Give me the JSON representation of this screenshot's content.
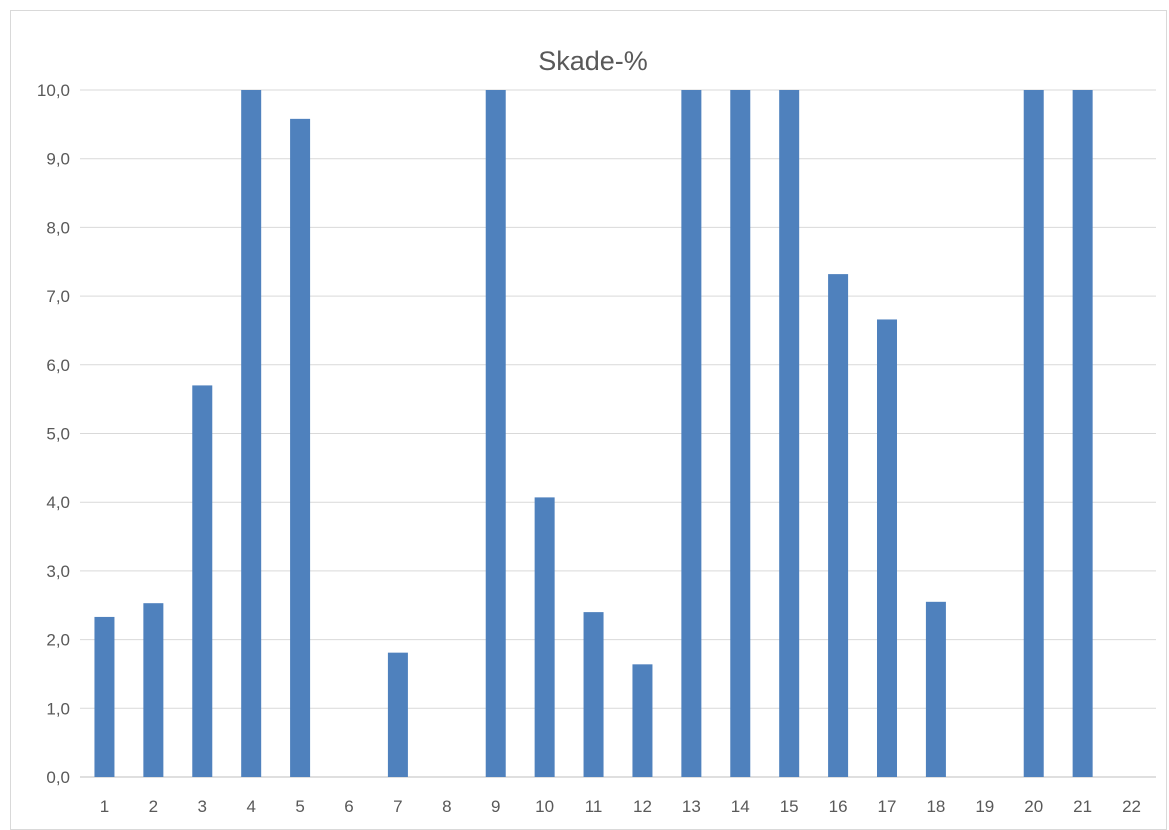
{
  "chart_data": {
    "type": "bar",
    "title": "Skade-%",
    "xlabel": "",
    "ylabel": "",
    "ylim": [
      0,
      10
    ],
    "ytick_step": 1,
    "ytick_labels": [
      "0,0",
      "1,0",
      "2,0",
      "3,0",
      "4,0",
      "5,0",
      "6,0",
      "7,0",
      "8,0",
      "9,0",
      "10,0"
    ],
    "categories": [
      "1",
      "2",
      "3",
      "4",
      "5",
      "6",
      "7",
      "8",
      "9",
      "10",
      "11",
      "12",
      "13",
      "14",
      "15",
      "16",
      "17",
      "18",
      "19",
      "20",
      "21",
      "22"
    ],
    "values": [
      2.33,
      2.53,
      5.7,
      10.0,
      9.58,
      0,
      1.81,
      0,
      10.0,
      4.07,
      2.4,
      1.64,
      10.0,
      10.0,
      10.0,
      7.32,
      6.66,
      2.55,
      0,
      10.0,
      10.0,
      0
    ],
    "grid": true,
    "legend": "none",
    "bar_color": "#4f81bd"
  }
}
